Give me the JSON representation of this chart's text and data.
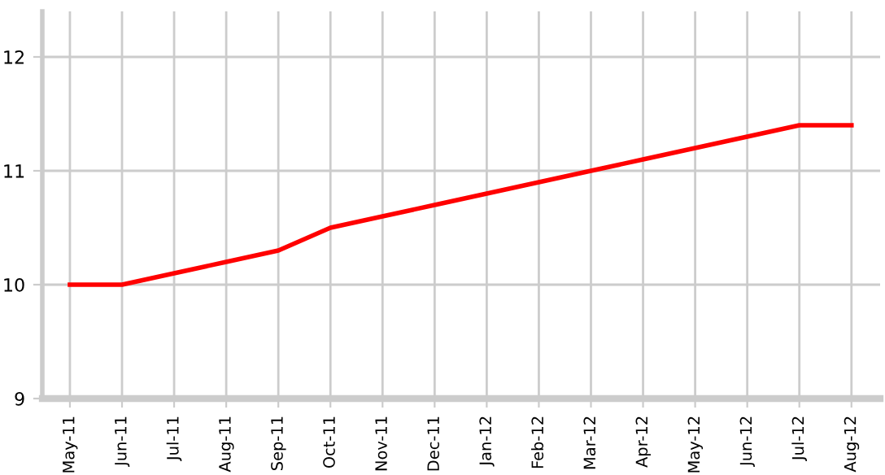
{
  "chart_data": {
    "type": "line",
    "categories": [
      "May-11",
      "Jun-11",
      "Jul-11",
      "Aug-11",
      "Sep-11",
      "Oct-11",
      "Nov-11",
      "Dec-11",
      "Jan-12",
      "Feb-12",
      "Mar-12",
      "Apr-12",
      "May-12",
      "Jun-12",
      "Jul-12",
      "Aug-12"
    ],
    "series": [
      {
        "color": "#ff0000",
        "values": [
          10,
          10,
          10.1,
          10.2,
          10.3,
          10.5,
          10.6,
          10.7,
          10.8,
          10.9,
          11.0,
          11.1,
          11.2,
          11.3,
          11.4,
          11.4
        ]
      }
    ],
    "ylim": [
      9,
      12.4
    ],
    "yticks": [
      9,
      10,
      11,
      12
    ],
    "grid": true,
    "marker": "none",
    "line_style": "solid"
  }
}
